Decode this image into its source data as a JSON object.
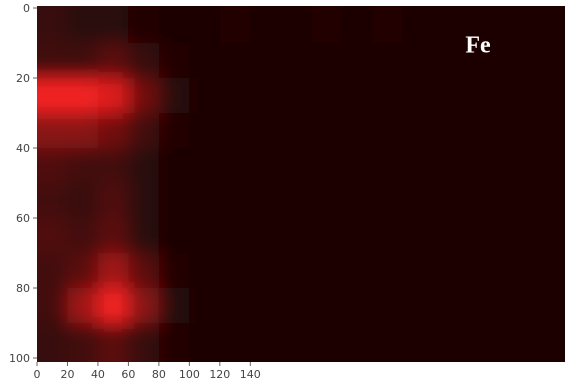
{
  "chart_data": {
    "type": "heatmap",
    "title": "Fe",
    "xlim": [
      0,
      340
    ],
    "ylim": [
      0,
      100
    ],
    "xticks": [
      0,
      20,
      40,
      60,
      80,
      100,
      120,
      140
    ],
    "yticks": [
      0,
      20,
      40,
      60,
      80,
      100
    ],
    "colormap": [
      "#140404",
      "#ff2424"
    ],
    "z": [
      [
        0.15,
        0.1,
        0.1,
        0.05,
        0.04,
        0.04,
        0.05,
        0.04,
        0.04,
        0.05,
        0.04,
        0.05,
        0.04,
        0.04,
        0.04,
        0.04,
        0.04
      ],
      [
        0.2,
        0.2,
        0.3,
        0.15,
        0.05,
        0.03,
        0.03,
        0.03,
        0.03,
        0.03,
        0.03,
        0.03,
        0.03,
        0.03,
        0.03,
        0.03,
        0.03
      ],
      [
        0.95,
        0.95,
        0.85,
        0.4,
        0.1,
        0.03,
        0.03,
        0.03,
        0.03,
        0.03,
        0.03,
        0.03,
        0.03,
        0.03,
        0.03,
        0.03,
        0.03
      ],
      [
        0.5,
        0.5,
        0.4,
        0.2,
        0.05,
        0.03,
        0.03,
        0.03,
        0.03,
        0.03,
        0.03,
        0.03,
        0.03,
        0.03,
        0.03,
        0.03,
        0.03
      ],
      [
        0.25,
        0.2,
        0.2,
        0.1,
        0.04,
        0.03,
        0.03,
        0.03,
        0.03,
        0.03,
        0.03,
        0.03,
        0.03,
        0.03,
        0.03,
        0.03,
        0.03
      ],
      [
        0.2,
        0.15,
        0.25,
        0.1,
        0.04,
        0.03,
        0.03,
        0.03,
        0.03,
        0.03,
        0.03,
        0.03,
        0.03,
        0.03,
        0.03,
        0.03,
        0.03
      ],
      [
        0.25,
        0.2,
        0.3,
        0.1,
        0.04,
        0.03,
        0.03,
        0.03,
        0.03,
        0.03,
        0.03,
        0.03,
        0.03,
        0.03,
        0.03,
        0.03,
        0.03
      ],
      [
        0.2,
        0.3,
        0.6,
        0.3,
        0.05,
        0.03,
        0.03,
        0.03,
        0.03,
        0.03,
        0.03,
        0.03,
        0.03,
        0.03,
        0.03,
        0.03,
        0.03
      ],
      [
        0.2,
        0.6,
        0.95,
        0.5,
        0.08,
        0.03,
        0.03,
        0.03,
        0.03,
        0.03,
        0.03,
        0.03,
        0.03,
        0.03,
        0.03,
        0.03,
        0.03
      ],
      [
        0.15,
        0.2,
        0.3,
        0.15,
        0.05,
        0.03,
        0.03,
        0.03,
        0.03,
        0.03,
        0.03,
        0.03,
        0.03,
        0.03,
        0.03,
        0.03,
        0.03
      ]
    ]
  }
}
